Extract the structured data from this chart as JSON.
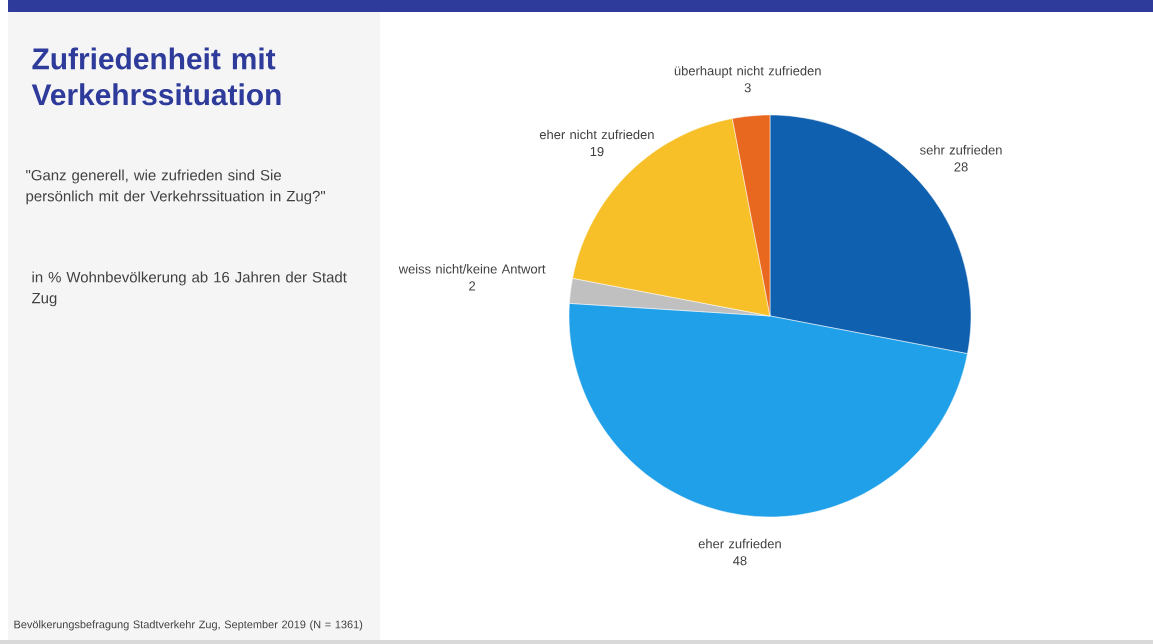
{
  "chart_data": {
    "type": "pie",
    "title": "Zufriedenheit mit Verkehrssituation",
    "subtitle": "\"Ganz generell, wie zufrieden sind Sie persönlich mit der Verkehrssituation in Zug?\"",
    "annotations": [
      "in % Wohnbevölkerung ab 16 Jahren der Stadt Zug",
      "Bevölkerungsbefragung Stadtverkehr Zug, September 2019 (N = 1361)"
    ],
    "categories": [
      "sehr zufrieden",
      "eher zufrieden",
      "weiss nicht/keine Antwort",
      "eher nicht zufrieden",
      "überhaupt nicht zufrieden"
    ],
    "values": [
      28,
      48,
      2,
      19,
      3
    ],
    "colors": [
      "#1060b0",
      "#20a0e8",
      "#c0c0c0",
      "#f8c028",
      "#e86820"
    ],
    "data_labels": true
  }
}
